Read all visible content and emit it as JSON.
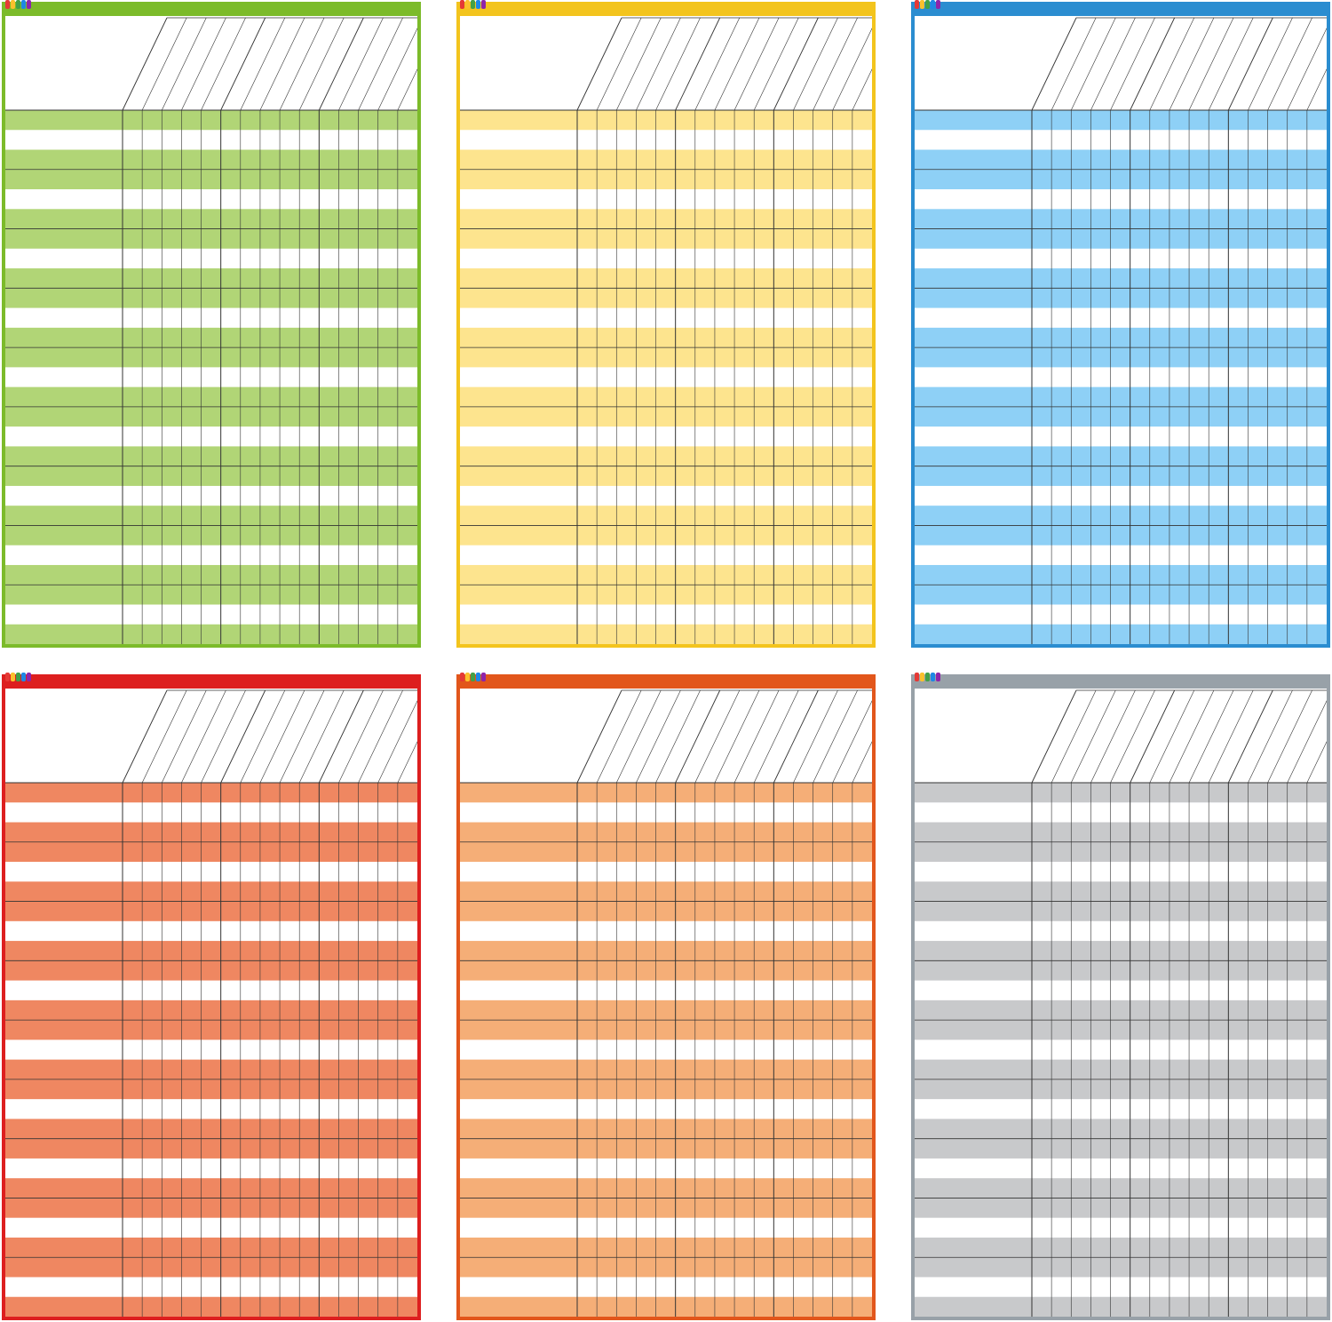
{
  "charts": [
    {
      "name": "green",
      "border": "#7cbb2a",
      "stripe": "#b1d576"
    },
    {
      "name": "yellow",
      "border": "#f3c41d",
      "stripe": "#fde48e"
    },
    {
      "name": "blue",
      "border": "#2b8dd0",
      "stripe": "#8ed0f6"
    },
    {
      "name": "red",
      "border": "#dd1f1f",
      "stripe": "#ef8761"
    },
    {
      "name": "orange",
      "border": "#e2561b",
      "stripe": "#f5ae77"
    },
    {
      "name": "gray",
      "border": "#98a1a8",
      "stripe": "#c8c9cb"
    }
  ],
  "grid": {
    "row_groups": 9,
    "stripe_pattern": "colored-white-colored",
    "columns": 15,
    "column_group_size": 5
  },
  "logo": {
    "icon": "brand-logo-icon",
    "colors": [
      "#e53935",
      "#fbc02d",
      "#43a047",
      "#1e88e5",
      "#8e24aa"
    ]
  }
}
